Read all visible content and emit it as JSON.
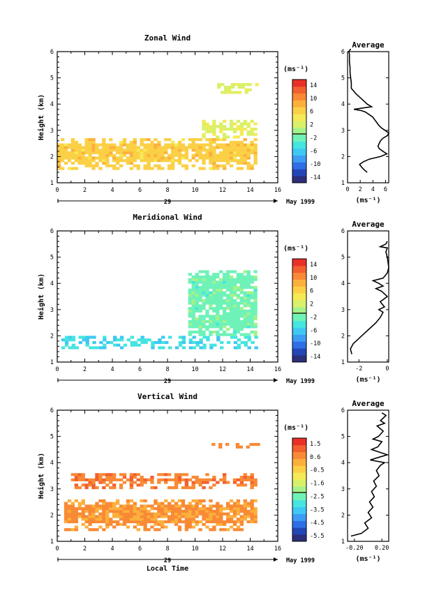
{
  "panels": [
    {
      "title": "Zonal Wind",
      "ylabel": "Height (km)",
      "x_ticks": [
        "0",
        "2",
        "4",
        "6",
        "8",
        "10",
        "12",
        "14",
        "16"
      ],
      "y_ticks": [
        "1",
        "2",
        "3",
        "4",
        "5",
        "6"
      ],
      "day_label": "29",
      "date_label": "May 1999",
      "colorbar_unit": "(ms⁻¹)",
      "colorbar_ticks": [
        "14",
        "10",
        "6",
        "2",
        "-2",
        "-6",
        "-10",
        "-14"
      ],
      "profile_title": "Average",
      "profile_x_ticks": [
        "0",
        "2",
        "4",
        "6"
      ],
      "profile_unit": "(ms⁻¹)"
    },
    {
      "title": "Meridional Wind",
      "ylabel": "Height (km)",
      "x_ticks": [
        "0",
        "2",
        "4",
        "6",
        "8",
        "10",
        "12",
        "14",
        "16"
      ],
      "y_ticks": [
        "1",
        "2",
        "3",
        "4",
        "5",
        "6"
      ],
      "day_label": "29",
      "date_label": "May 1999",
      "colorbar_unit": "(ms⁻¹)",
      "colorbar_ticks": [
        "14",
        "10",
        "6",
        "2",
        "-2",
        "-6",
        "-10",
        "-14"
      ],
      "profile_title": "Average",
      "profile_x_ticks": [
        "-2",
        "0"
      ],
      "profile_unit": "(ms⁻¹)"
    },
    {
      "title": "Vertical Wind",
      "ylabel": "Height (km)",
      "xlabel": "Local Time",
      "x_ticks": [
        "0",
        "2",
        "4",
        "6",
        "8",
        "10",
        "12",
        "14",
        "16"
      ],
      "y_ticks": [
        "1",
        "2",
        "3",
        "4",
        "5",
        "6"
      ],
      "day_label": "29",
      "date_label": "May 1999",
      "colorbar_unit": "(ms⁻¹)",
      "colorbar_ticks": [
        "1.5",
        "0.6",
        "-0.5",
        "-1.6",
        "-2.5",
        "-3.5",
        "-4.5",
        "-5.5"
      ],
      "profile_title": "Average",
      "profile_x_ticks": [
        "-0.20",
        "0.20"
      ],
      "profile_unit": "(ms⁻¹)"
    }
  ],
  "chart_data": [
    {
      "type": "heatmap",
      "title": "Zonal Wind",
      "xlabel": "",
      "ylabel": "Height (km)",
      "xlim": [
        0,
        16
      ],
      "ylim": [
        1,
        6
      ],
      "colorbar_range": [
        -16,
        16
      ],
      "regions": [
        {
          "x0": 0,
          "x1": 14.5,
          "y0": 1.5,
          "y1": 2.7,
          "value": 6.5
        },
        {
          "x0": 10.5,
          "x1": 14.5,
          "y0": 2.7,
          "y1": 3.4,
          "value": 3
        },
        {
          "x0": 11.6,
          "x1": 14.5,
          "y0": 4.4,
          "y1": 4.7,
          "value": 2.5
        }
      ],
      "profile": {
        "title": "Average",
        "xlim": [
          0,
          6.5
        ],
        "x": [
          3.1,
          2.6,
          2.2,
          1.9,
          2.5,
          3.4,
          5.2,
          6.2,
          5.6,
          5.0,
          4.8,
          5.0,
          5.2,
          5.6,
          6.3,
          6.5,
          5.9,
          5.3,
          4.9,
          4.6,
          4.3,
          4.0,
          3.4,
          2.8,
          2.2,
          1.0,
          2.4,
          3.8,
          3.1,
          2.2,
          1.3,
          0.6,
          0.6,
          0.5,
          0.4,
          0.4,
          0.3,
          0.3,
          0.3,
          0.2,
          0.5
        ],
        "y": [
          1.4,
          1.5,
          1.6,
          1.7,
          1.8,
          1.9,
          2.0,
          2.1,
          2.2,
          2.3,
          2.4,
          2.5,
          2.6,
          2.7,
          2.8,
          2.9,
          3.0,
          3.1,
          3.2,
          3.3,
          3.4,
          3.5,
          3.6,
          3.7,
          3.75,
          3.8,
          3.85,
          3.9,
          4.0,
          4.2,
          4.4,
          4.6,
          4.8,
          5.0,
          5.2,
          5.4,
          5.6,
          5.8,
          5.9,
          6.0,
          6.1
        ]
      }
    },
    {
      "type": "heatmap",
      "title": "Meridional Wind",
      "xlabel": "",
      "ylabel": "Height (km)",
      "xlim": [
        0,
        16
      ],
      "ylim": [
        1,
        6
      ],
      "colorbar_range": [
        -16,
        16
      ],
      "regions": [
        {
          "x0": 0.3,
          "x1": 14.5,
          "y0": 1.5,
          "y1": 2.0,
          "value": -5
        },
        {
          "x0": 9.5,
          "x1": 14.5,
          "y0": 2.0,
          "y1": 4.5,
          "value": -2
        }
      ],
      "profile": {
        "title": "Average",
        "xlim": [
          -2.8,
          0.1
        ],
        "x": [
          -2.5,
          -2.6,
          -2.4,
          -2.0,
          -1.6,
          -1.2,
          -0.8,
          -0.5,
          -0.3,
          -0.6,
          -0.2,
          -0.5,
          0.0,
          -0.4,
          -0.8,
          -0.3,
          -0.6,
          -1.0,
          -0.3,
          0.0,
          0.1,
          0.0,
          -0.1,
          0.0,
          -0.5,
          -0.1,
          0.0
        ],
        "y": [
          1.3,
          1.5,
          1.7,
          1.9,
          2.1,
          2.3,
          2.5,
          2.7,
          2.9,
          3.0,
          3.1,
          3.3,
          3.5,
          3.7,
          3.8,
          3.9,
          4.0,
          4.1,
          4.2,
          4.4,
          4.6,
          5.0,
          5.2,
          5.35,
          5.4,
          5.5,
          5.6
        ]
      }
    },
    {
      "type": "heatmap",
      "title": "Vertical Wind",
      "xlabel": "Local Time",
      "ylabel": "Height (km)",
      "xlim": [
        0,
        16
      ],
      "ylim": [
        1,
        6
      ],
      "colorbar_range": [
        -6,
        2
      ],
      "regions": [
        {
          "x0": 0.5,
          "x1": 14.5,
          "y0": 1.4,
          "y1": 2.6,
          "value": 0.5
        },
        {
          "x0": 1.0,
          "x1": 14.5,
          "y0": 3.0,
          "y1": 3.6,
          "value": 0.8
        },
        {
          "x0": 11.2,
          "x1": 14.5,
          "y0": 4.55,
          "y1": 4.7,
          "value": 0.6
        }
      ],
      "profile": {
        "title": "Average",
        "xlim": [
          -0.3,
          0.3
        ],
        "x": [
          -0.25,
          -0.1,
          0.0,
          -0.05,
          0.05,
          0.0,
          0.07,
          0.02,
          0.09,
          0.05,
          0.12,
          0.08,
          0.16,
          0.12,
          0.18,
          0.24,
          0.03,
          0.15,
          0.28,
          0.05,
          0.14,
          0.2,
          0.07,
          0.15,
          0.22,
          0.13,
          0.24,
          0.18,
          0.26,
          0.2
        ],
        "y": [
          1.2,
          1.3,
          1.5,
          1.7,
          1.9,
          2.1,
          2.3,
          2.5,
          2.7,
          2.9,
          3.1,
          3.3,
          3.5,
          3.7,
          3.9,
          4.0,
          4.1,
          4.2,
          4.3,
          4.5,
          4.6,
          4.8,
          4.9,
          5.0,
          5.2,
          5.4,
          5.5,
          5.6,
          5.8,
          5.9
        ]
      }
    }
  ]
}
